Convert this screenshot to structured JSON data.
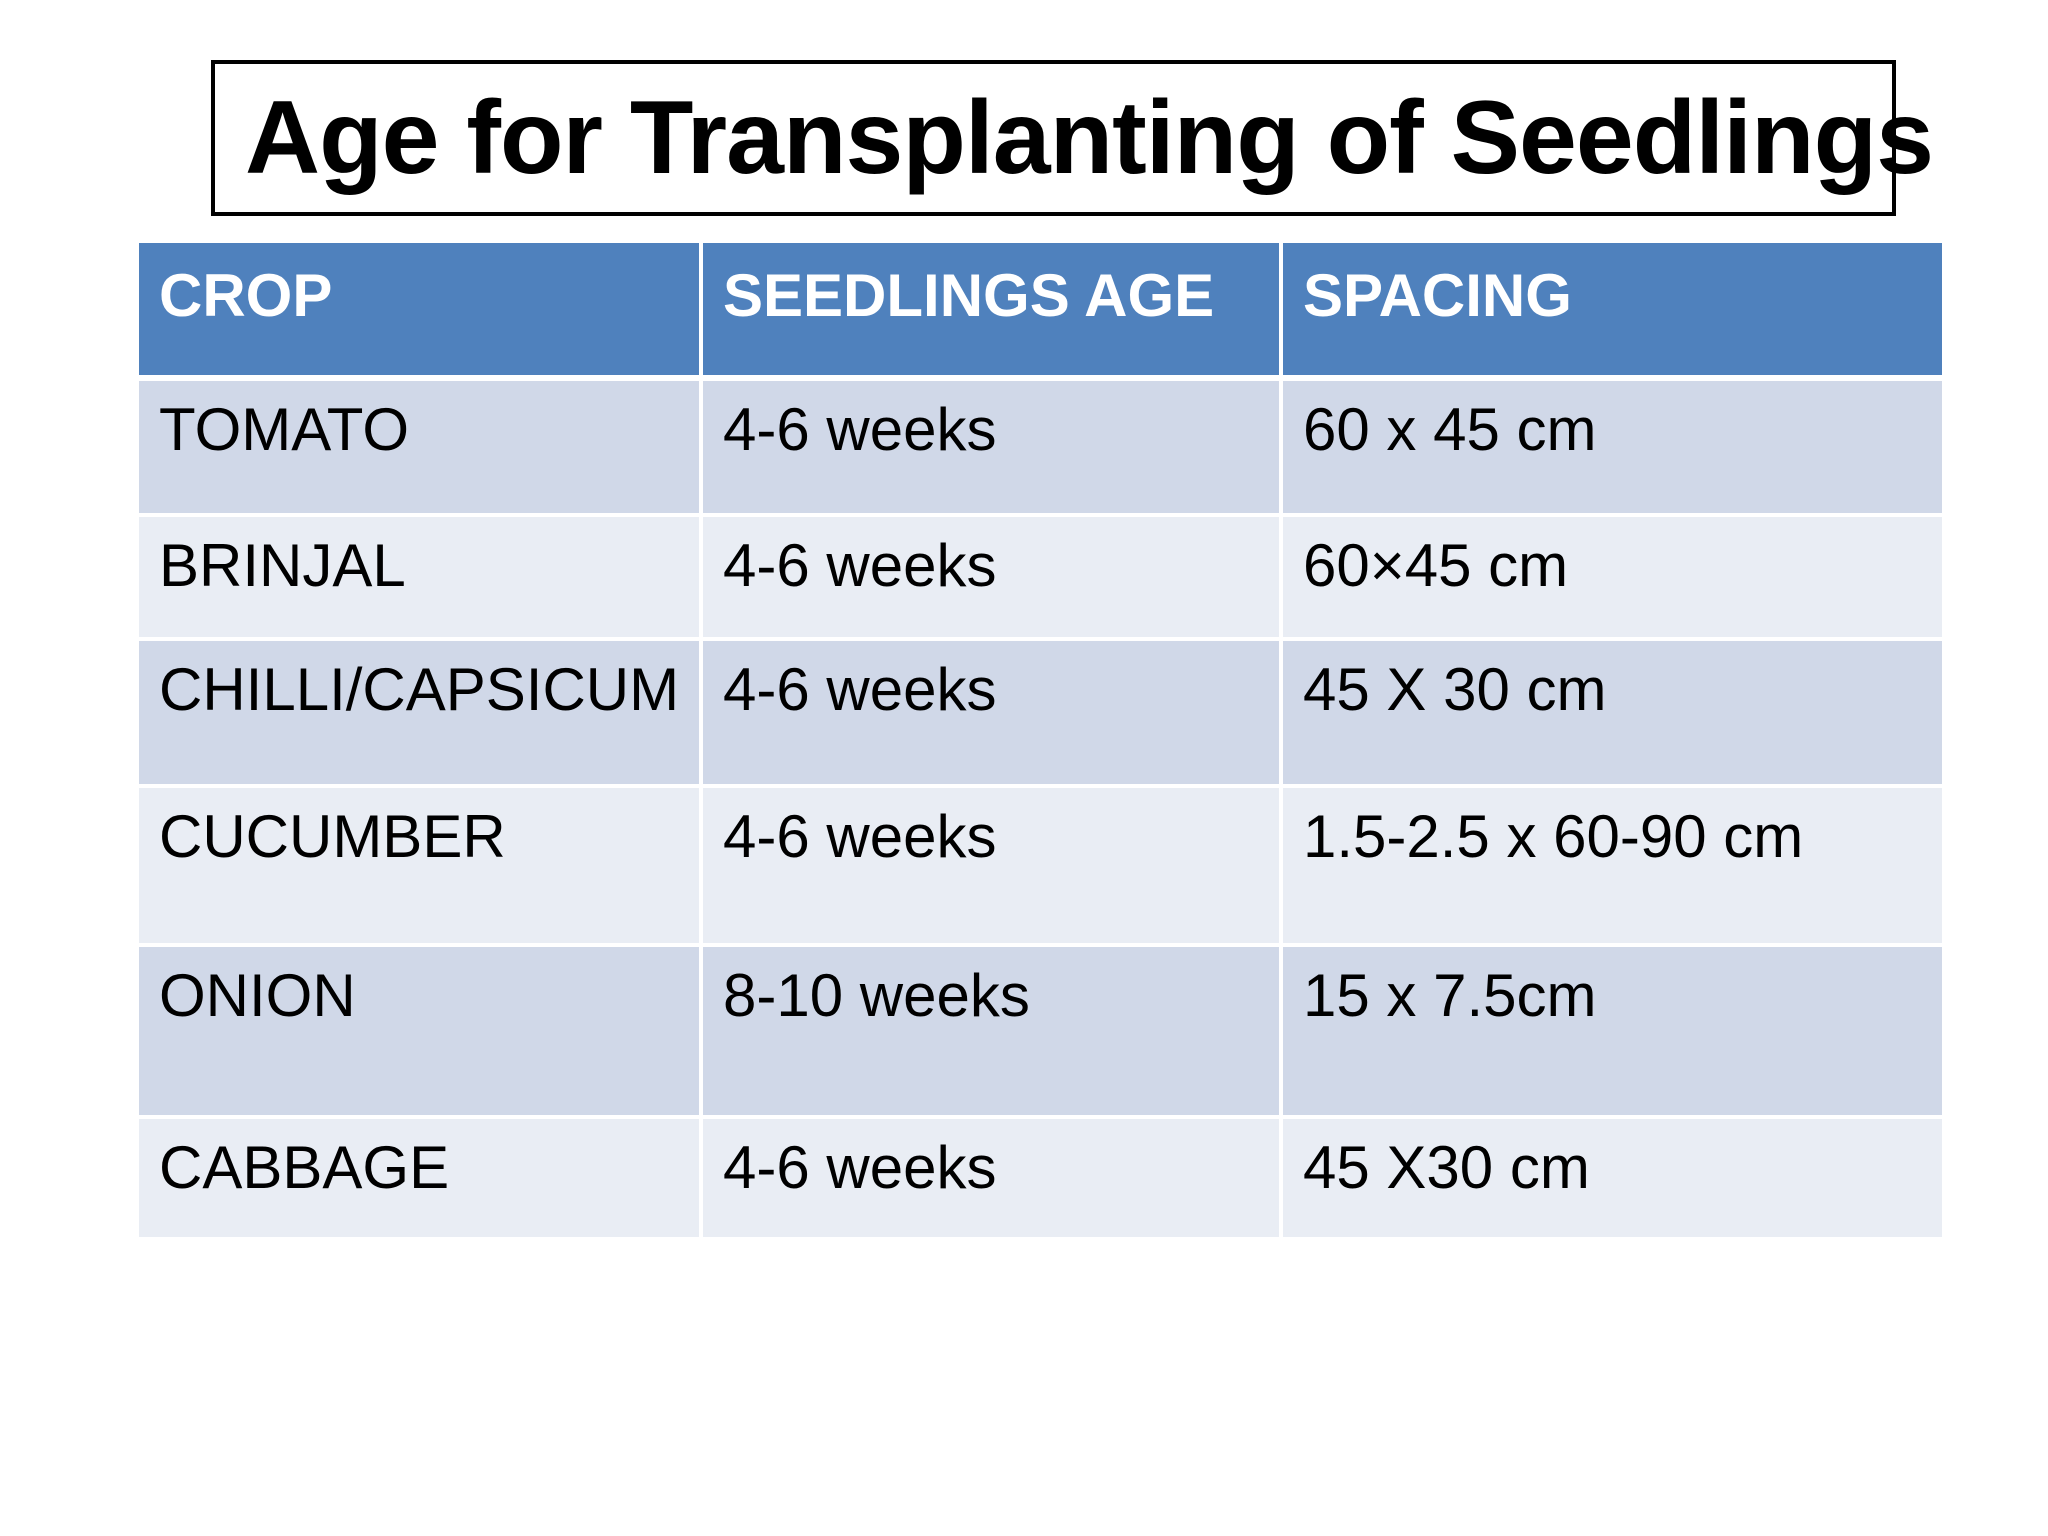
{
  "title": "Age for Transplanting of Seedlings",
  "table": {
    "headers": [
      "CROP",
      "SEEDLINGS AGE",
      "SPACING"
    ],
    "rows": [
      [
        "TOMATO",
        "4-6 weeks",
        "60 x 45 cm"
      ],
      [
        "BRINJAL",
        "4-6 weeks",
        "60×45 cm"
      ],
      [
        "CHILLI/CAPSICUM",
        "4-6 weeks",
        "45 X 30 cm"
      ],
      [
        "CUCUMBER",
        "4-6 weeks",
        "1.5-2.5 x 60-90 cm"
      ],
      [
        "ONION",
        "8-10 weeks",
        "15 x 7.5cm"
      ],
      [
        "CABBAGE",
        "4-6 weeks",
        "45 X30 cm"
      ]
    ]
  },
  "colors": {
    "header_bg": "#4f81bd",
    "row_odd_bg": "#d0d8e8",
    "row_even_bg": "#e9edf4"
  }
}
